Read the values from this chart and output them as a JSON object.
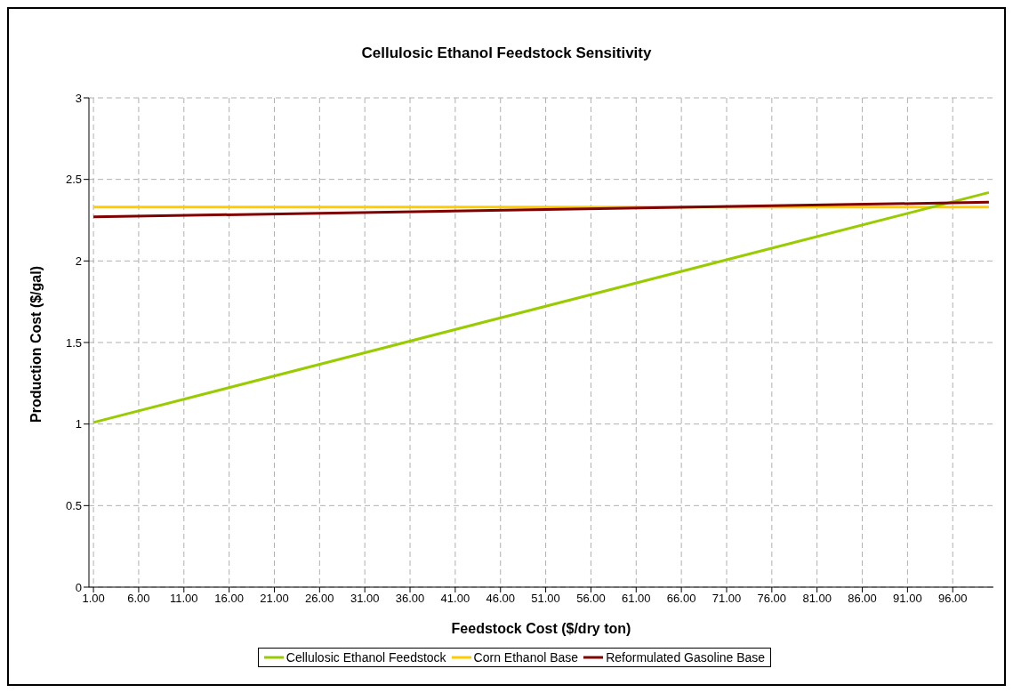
{
  "chart_data": {
    "type": "line",
    "title": "Cellulosic Ethanol Feedstock Sensitivity",
    "xlabel": "Feedstock Cost ($/dry ton)",
    "ylabel": "Production Cost ($/gal)",
    "x": [
      1,
      100
    ],
    "series": [
      {
        "name": "Corn Ethanol Base",
        "color": "#ffcc00",
        "values": [
          2.33,
          2.33
        ]
      },
      {
        "name": "Cellulosic Ethanol Feedstock",
        "color": "#99cc00",
        "values": [
          1.01,
          2.42
        ]
      },
      {
        "name": "Reformulated Gasoline Base",
        "color": "#800000",
        "values": [
          2.27,
          2.36
        ]
      }
    ],
    "xlim": [
      0.5,
      100.5
    ],
    "xticks": [
      {
        "value": 1,
        "label": "1.00"
      },
      {
        "value": 6,
        "label": "6.00"
      },
      {
        "value": 11,
        "label": "11.00"
      },
      {
        "value": 16,
        "label": "16.00"
      },
      {
        "value": 21,
        "label": "21.00"
      },
      {
        "value": 26,
        "label": "26.00"
      },
      {
        "value": 31,
        "label": "31.00"
      },
      {
        "value": 36,
        "label": "36.00"
      },
      {
        "value": 41,
        "label": "41.00"
      },
      {
        "value": 46,
        "label": "46.00"
      },
      {
        "value": 51,
        "label": "51.00"
      },
      {
        "value": 56,
        "label": "56.00"
      },
      {
        "value": 61,
        "label": "61.00"
      },
      {
        "value": 66,
        "label": "66.00"
      },
      {
        "value": 71,
        "label": "71.00"
      },
      {
        "value": 76,
        "label": "76.00"
      },
      {
        "value": 81,
        "label": "81.00"
      },
      {
        "value": 86,
        "label": "86.00"
      },
      {
        "value": 91,
        "label": "91.00"
      },
      {
        "value": 96,
        "label": "96.00"
      }
    ],
    "ylim": [
      0,
      3
    ],
    "yticks": [
      0,
      0.5,
      1,
      1.5,
      2,
      2.5,
      3
    ],
    "grid": true,
    "legend": "bottom",
    "marker": "none",
    "line_style": "solid"
  }
}
